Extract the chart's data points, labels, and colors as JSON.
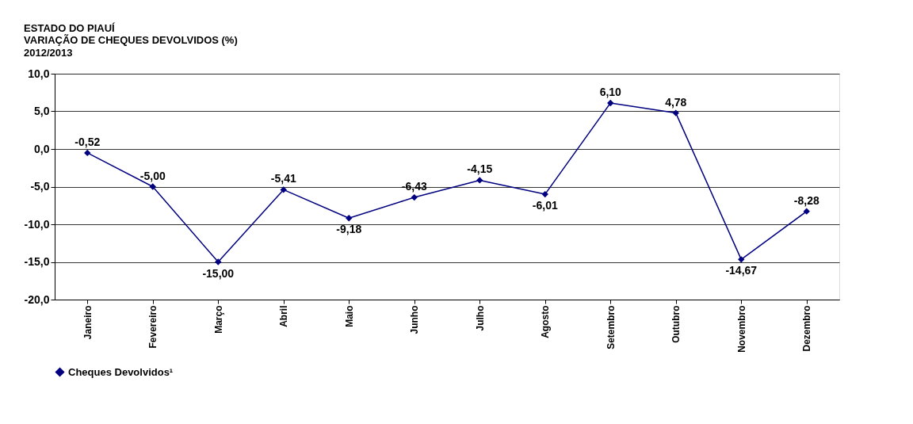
{
  "chart_data": {
    "type": "line",
    "title": "ESTADO DO PIAUÍ\nVARIAÇÃO DE CHEQUES DEVOLVIDOS (%)",
    "subtitle": "2012/2013",
    "categories": [
      "Janeiro",
      "Fevereiro",
      "Março",
      "Abril",
      "Maio",
      "Junho",
      "Julho",
      "Agosto",
      "Setembro",
      "Outubro",
      "Novembro",
      "Dezembro"
    ],
    "series": [
      {
        "name": "Cheques Devolvidos¹",
        "color": "#000080",
        "values": [
          -0.52,
          -5.0,
          -15.0,
          -5.41,
          -9.18,
          -6.43,
          -4.15,
          -6.01,
          6.1,
          4.78,
          -14.67,
          -8.28
        ],
        "value_labels": [
          "-0,52",
          "-5,00",
          "-15,00",
          "-5,41",
          "-9,18",
          "-6,43",
          "-4,15",
          "-6,01",
          "6,10",
          "4,78",
          "-14,67",
          "-8,28"
        ]
      }
    ],
    "ylim": [
      -20,
      10
    ],
    "yticks": [
      {
        "value": -20,
        "label": "-20,0"
      },
      {
        "value": -15,
        "label": "-15,0"
      },
      {
        "value": -10,
        "label": "-10,0"
      },
      {
        "value": -5,
        "label": "-5,0"
      },
      {
        "value": 0,
        "label": "0,0"
      },
      {
        "value": 5,
        "label": "5,0"
      },
      {
        "value": 10,
        "label": "10,0"
      }
    ],
    "grid": "y",
    "legend": "bottom",
    "marker": "diamond",
    "line_style": "solid"
  }
}
